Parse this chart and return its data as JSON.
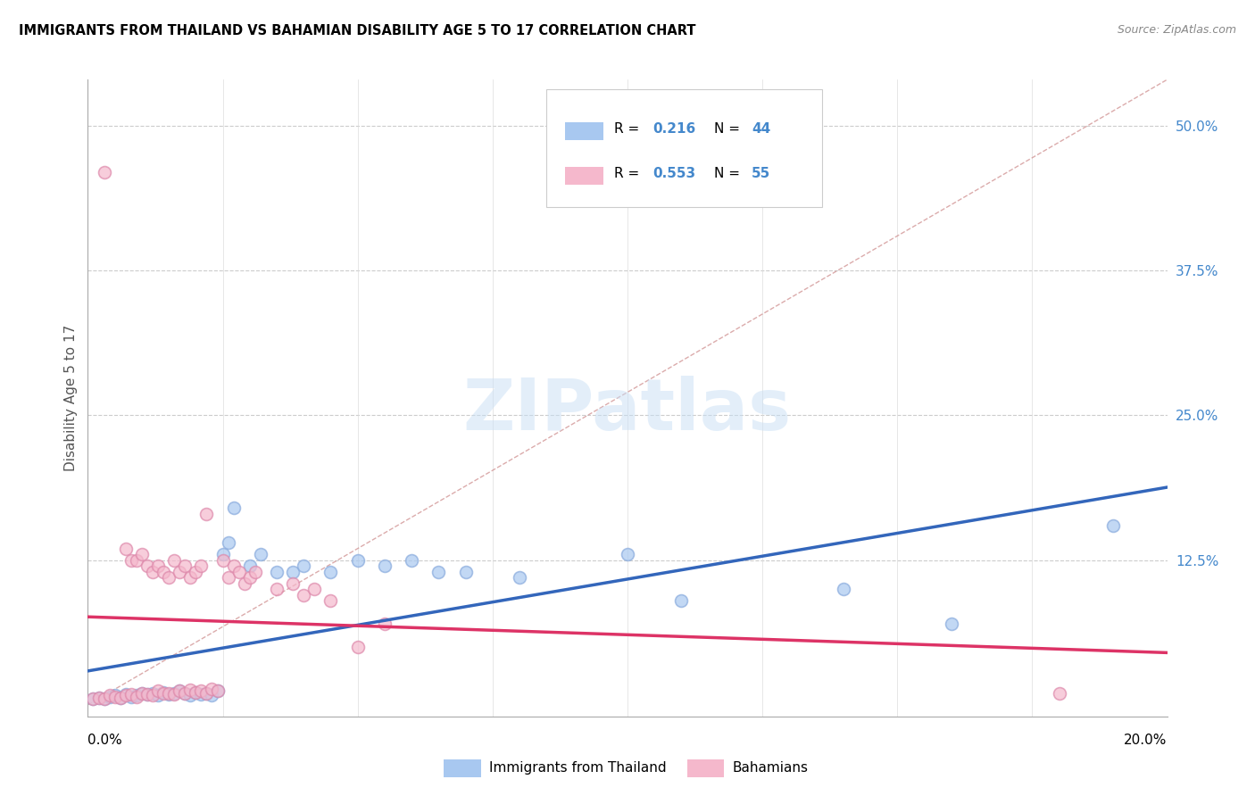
{
  "title": "IMMIGRANTS FROM THAILAND VS BAHAMIAN DISABILITY AGE 5 TO 17 CORRELATION CHART",
  "source": "Source: ZipAtlas.com",
  "ylabel": "Disability Age 5 to 17",
  "right_ytick_vals": [
    0.125,
    0.25,
    0.375,
    0.5
  ],
  "right_ytick_labels": [
    "12.5%",
    "25.0%",
    "37.5%",
    "50.0%"
  ],
  "xlim": [
    0.0,
    0.2
  ],
  "ylim": [
    -0.01,
    0.54
  ],
  "thailand_color": "#a8c8f0",
  "thailand_edge_color": "#88aadd",
  "bahamian_color": "#f5b8cc",
  "bahamian_edge_color": "#dd88aa",
  "trend_thailand_color": "#3366bb",
  "trend_bahamian_color": "#dd3366",
  "diagonal_color": "#ddaaaa",
  "diagonal_style": "--",
  "watermark": "ZIPatlas",
  "thailand_scatter": [
    [
      0.001,
      0.005
    ],
    [
      0.002,
      0.006
    ],
    [
      0.003,
      0.005
    ],
    [
      0.004,
      0.007
    ],
    [
      0.005,
      0.008
    ],
    [
      0.006,
      0.006
    ],
    [
      0.007,
      0.009
    ],
    [
      0.008,
      0.007
    ],
    [
      0.009,
      0.008
    ],
    [
      0.01,
      0.01
    ],
    [
      0.011,
      0.009
    ],
    [
      0.012,
      0.01
    ],
    [
      0.013,
      0.008
    ],
    [
      0.014,
      0.011
    ],
    [
      0.015,
      0.009
    ],
    [
      0.016,
      0.01
    ],
    [
      0.017,
      0.012
    ],
    [
      0.018,
      0.01
    ],
    [
      0.019,
      0.008
    ],
    [
      0.02,
      0.011
    ],
    [
      0.021,
      0.009
    ],
    [
      0.022,
      0.01
    ],
    [
      0.023,
      0.008
    ],
    [
      0.024,
      0.012
    ],
    [
      0.025,
      0.13
    ],
    [
      0.026,
      0.14
    ],
    [
      0.027,
      0.17
    ],
    [
      0.03,
      0.12
    ],
    [
      0.032,
      0.13
    ],
    [
      0.035,
      0.115
    ],
    [
      0.038,
      0.115
    ],
    [
      0.04,
      0.12
    ],
    [
      0.045,
      0.115
    ],
    [
      0.05,
      0.125
    ],
    [
      0.055,
      0.12
    ],
    [
      0.06,
      0.125
    ],
    [
      0.065,
      0.115
    ],
    [
      0.07,
      0.115
    ],
    [
      0.08,
      0.11
    ],
    [
      0.1,
      0.13
    ],
    [
      0.11,
      0.09
    ],
    [
      0.14,
      0.1
    ],
    [
      0.16,
      0.07
    ],
    [
      0.19,
      0.155
    ]
  ],
  "bahamian_scatter": [
    [
      0.001,
      0.005
    ],
    [
      0.002,
      0.006
    ],
    [
      0.003,
      0.005
    ],
    [
      0.004,
      0.008
    ],
    [
      0.005,
      0.007
    ],
    [
      0.006,
      0.006
    ],
    [
      0.007,
      0.008
    ],
    [
      0.008,
      0.009
    ],
    [
      0.009,
      0.007
    ],
    [
      0.01,
      0.01
    ],
    [
      0.011,
      0.009
    ],
    [
      0.012,
      0.008
    ],
    [
      0.013,
      0.012
    ],
    [
      0.014,
      0.01
    ],
    [
      0.015,
      0.01
    ],
    [
      0.016,
      0.009
    ],
    [
      0.017,
      0.012
    ],
    [
      0.018,
      0.01
    ],
    [
      0.019,
      0.013
    ],
    [
      0.02,
      0.011
    ],
    [
      0.021,
      0.012
    ],
    [
      0.022,
      0.01
    ],
    [
      0.023,
      0.014
    ],
    [
      0.024,
      0.012
    ],
    [
      0.003,
      0.46
    ],
    [
      0.007,
      0.135
    ],
    [
      0.008,
      0.125
    ],
    [
      0.009,
      0.125
    ],
    [
      0.01,
      0.13
    ],
    [
      0.011,
      0.12
    ],
    [
      0.012,
      0.115
    ],
    [
      0.013,
      0.12
    ],
    [
      0.014,
      0.115
    ],
    [
      0.015,
      0.11
    ],
    [
      0.016,
      0.125
    ],
    [
      0.017,
      0.115
    ],
    [
      0.018,
      0.12
    ],
    [
      0.019,
      0.11
    ],
    [
      0.02,
      0.115
    ],
    [
      0.021,
      0.12
    ],
    [
      0.022,
      0.165
    ],
    [
      0.025,
      0.125
    ],
    [
      0.026,
      0.11
    ],
    [
      0.027,
      0.12
    ],
    [
      0.028,
      0.115
    ],
    [
      0.029,
      0.105
    ],
    [
      0.03,
      0.11
    ],
    [
      0.031,
      0.115
    ],
    [
      0.035,
      0.1
    ],
    [
      0.038,
      0.105
    ],
    [
      0.04,
      0.095
    ],
    [
      0.042,
      0.1
    ],
    [
      0.045,
      0.09
    ],
    [
      0.05,
      0.05
    ],
    [
      0.055,
      0.07
    ],
    [
      0.18,
      0.01
    ]
  ]
}
